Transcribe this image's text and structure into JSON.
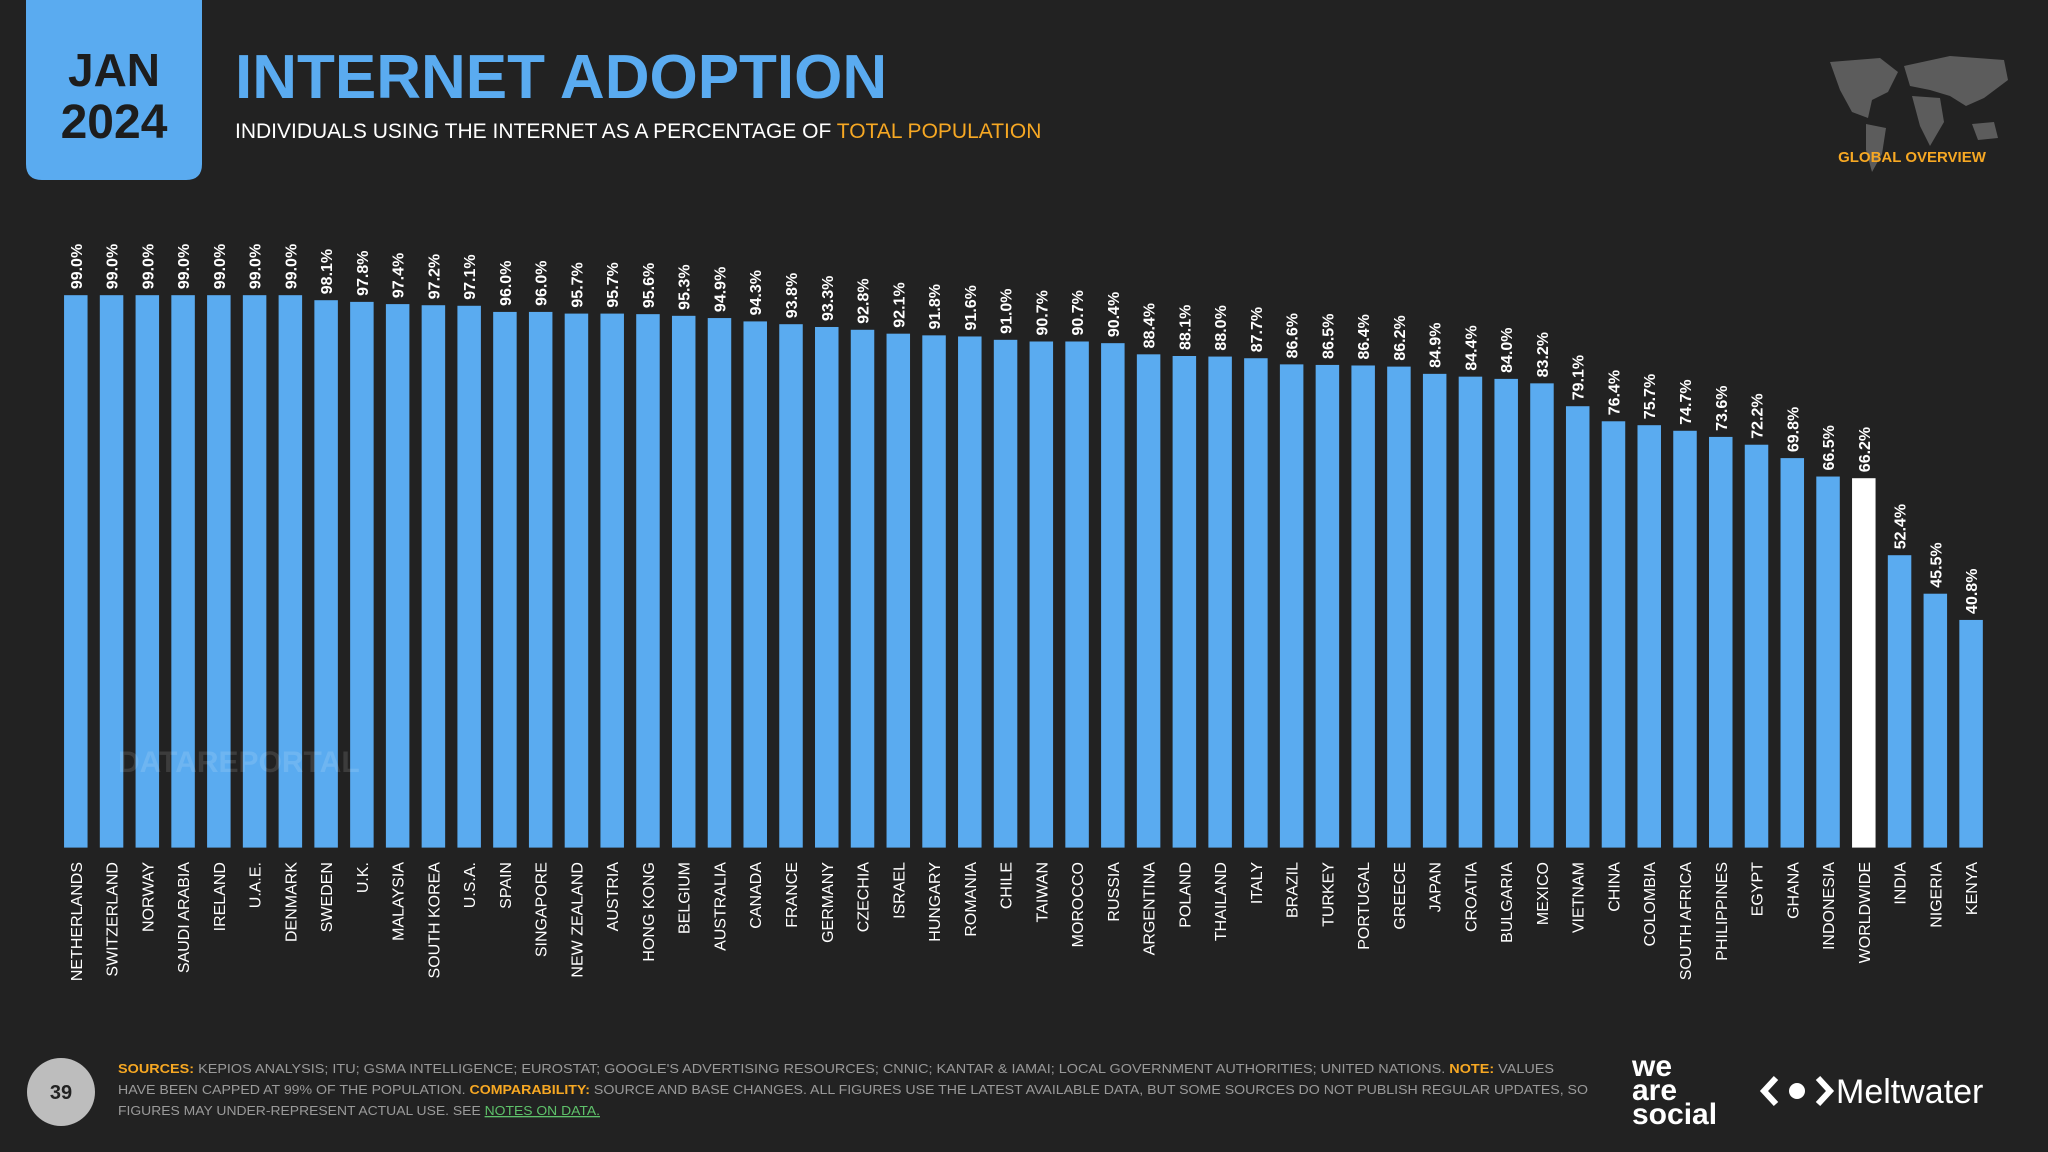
{
  "header": {
    "date_month": "JAN",
    "date_year": "2024",
    "section": "GLOBAL OVERVIEW",
    "page_number": "39",
    "watermark": "DATAREPORTAL"
  },
  "chart_data": {
    "type": "bar",
    "title": "INTERNET ADOPTION",
    "subtitle": "INDIVIDUALS USING THE INTERNET AS A PERCENTAGE OF",
    "subtitle_highlight": "TOTAL POPULATION",
    "categories": [
      "NETHERLANDS",
      "SWITZERLAND",
      "NORWAY",
      "SAUDI ARABIA",
      "IRELAND",
      "U.A.E.",
      "DENMARK",
      "SWEDEN",
      "U.K.",
      "MALAYSIA",
      "SOUTH KOREA",
      "U.S.A.",
      "SPAIN",
      "SINGAPORE",
      "NEW ZEALAND",
      "AUSTRIA",
      "HONG KONG",
      "BELGIUM",
      "AUSTRALIA",
      "CANADA",
      "FRANCE",
      "GERMANY",
      "CZECHIA",
      "ISRAEL",
      "HUNGARY",
      "ROMANIA",
      "CHILE",
      "TAIWAN",
      "MOROCCO",
      "RUSSIA",
      "ARGENTINA",
      "POLAND",
      "THAILAND",
      "ITALY",
      "BRAZIL",
      "TURKEY",
      "PORTUGAL",
      "GREECE",
      "JAPAN",
      "CROATIA",
      "BULGARIA",
      "MEXICO",
      "VIETNAM",
      "CHINA",
      "COLOMBIA",
      "SOUTH AFRICA",
      "PHILIPPINES",
      "EGYPT",
      "GHANA",
      "INDONESIA",
      "WORLDWIDE",
      "INDIA",
      "NIGERIA",
      "KENYA"
    ],
    "values": [
      99.0,
      99.0,
      99.0,
      99.0,
      99.0,
      99.0,
      99.0,
      98.1,
      97.8,
      97.4,
      97.2,
      97.1,
      96.0,
      96.0,
      95.7,
      95.7,
      95.6,
      95.3,
      94.9,
      94.3,
      93.8,
      93.3,
      92.8,
      92.1,
      91.8,
      91.6,
      91.0,
      90.7,
      90.7,
      90.4,
      88.4,
      88.1,
      88.0,
      87.7,
      86.6,
      86.5,
      86.4,
      86.2,
      84.9,
      84.4,
      84.0,
      83.2,
      79.1,
      76.4,
      75.7,
      74.7,
      73.6,
      72.2,
      69.8,
      66.5,
      66.2,
      52.4,
      45.5,
      40.8
    ],
    "value_labels": [
      "99.0%",
      "99.0%",
      "99.0%",
      "99.0%",
      "99.0%",
      "99.0%",
      "99.0%",
      "98.1%",
      "97.8%",
      "97.4%",
      "97.2%",
      "97.1%",
      "96.0%",
      "96.0%",
      "95.7%",
      "95.7%",
      "95.6%",
      "95.3%",
      "94.9%",
      "94.3%",
      "93.8%",
      "93.3%",
      "92.8%",
      "92.1%",
      "91.8%",
      "91.6%",
      "91.0%",
      "90.7%",
      "90.7%",
      "90.4%",
      "88.4%",
      "88.1%",
      "88.0%",
      "87.7%",
      "86.6%",
      "86.5%",
      "86.4%",
      "86.2%",
      "84.9%",
      "84.4%",
      "84.0%",
      "83.2%",
      "79.1%",
      "76.4%",
      "75.7%",
      "74.7%",
      "73.6%",
      "72.2%",
      "69.8%",
      "66.5%",
      "66.2%",
      "52.4%",
      "45.5%",
      "40.8%"
    ],
    "colors": [
      "#5aabf0",
      "#5aabf0",
      "#5aabf0",
      "#5aabf0",
      "#5aabf0",
      "#5aabf0",
      "#5aabf0",
      "#5aabf0",
      "#5aabf0",
      "#5aabf0",
      "#5aabf0",
      "#5aabf0",
      "#5aabf0",
      "#5aabf0",
      "#5aabf0",
      "#5aabf0",
      "#5aabf0",
      "#5aabf0",
      "#5aabf0",
      "#5aabf0",
      "#5aabf0",
      "#5aabf0",
      "#5aabf0",
      "#5aabf0",
      "#5aabf0",
      "#5aabf0",
      "#5aabf0",
      "#5aabf0",
      "#5aabf0",
      "#5aabf0",
      "#5aabf0",
      "#5aabf0",
      "#5aabf0",
      "#5aabf0",
      "#5aabf0",
      "#5aabf0",
      "#5aabf0",
      "#5aabf0",
      "#5aabf0",
      "#5aabf0",
      "#5aabf0",
      "#5aabf0",
      "#5aabf0",
      "#5aabf0",
      "#5aabf0",
      "#5aabf0",
      "#5aabf0",
      "#5aabf0",
      "#5aabf0",
      "#5aabf0",
      "#ffffff",
      "#5aabf0",
      "#5aabf0",
      "#5aabf0"
    ]
  },
  "footnote": {
    "line1": [
      "SOURCES:",
      "KEPIOS ANALYSIS; ITU; GSMA INTELLIGENCE; EUROSTAT; GOOGLE'S ADVERTISING RESOURCES; CNNIC; KANTAR & IAMAI; LOCAL GOVERNMENT AUTHORITIES; UNITED NATIONS.",
      "NOTE:",
      "VALUES"
    ],
    "line2": [
      "HAVE BEEN CAPPED AT 99% OF THE POPULATION.",
      "COMPARABILITY:",
      "SOURCE AND BASE CHANGES. ALL FIGURES USE THE LATEST AVAILABLE DATA, BUT SOME SOURCES DO NOT PUBLISH REGULAR UPDATES, SO"
    ],
    "line3": [
      "FIGURES MAY UNDER-REPRESENT ACTUAL USE. SEE",
      "NOTES ON DATA."
    ]
  },
  "logos": {
    "partner_lines": [
      "we",
      "are",
      "social"
    ],
    "sponsor": "Meltwater"
  }
}
